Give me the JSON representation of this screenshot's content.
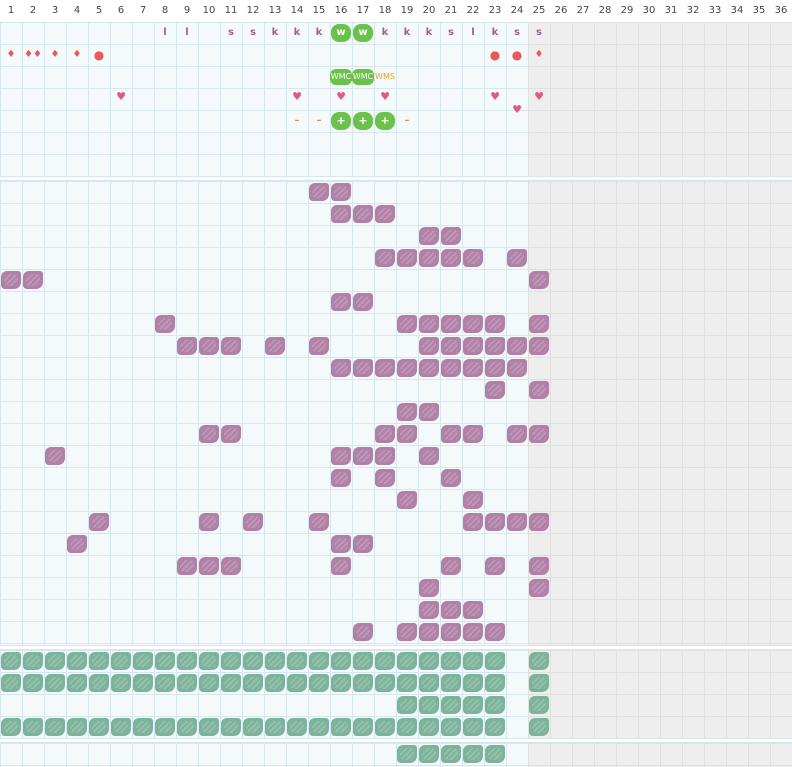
{
  "days": [
    "1",
    "2",
    "3",
    "4",
    "5",
    "6",
    "7",
    "8",
    "9",
    "10",
    "11",
    "12",
    "13",
    "14",
    "15",
    "16",
    "17",
    "18",
    "19",
    "20",
    "21",
    "22",
    "23",
    "24",
    "25",
    "26",
    "27",
    "28",
    "29",
    "30",
    "31",
    "32",
    "33",
    "34",
    "35",
    "36"
  ],
  "symbols": {
    "letters": [
      {
        "day": 8,
        "text": "l"
      },
      {
        "day": 9,
        "text": "l"
      },
      {
        "day": 11,
        "text": "s"
      },
      {
        "day": 12,
        "text": "s"
      },
      {
        "day": 13,
        "text": "k"
      },
      {
        "day": 14,
        "text": "k"
      },
      {
        "day": 15,
        "text": "k"
      },
      {
        "day": 18,
        "text": "k"
      },
      {
        "day": 19,
        "text": "k"
      },
      {
        "day": 20,
        "text": "k"
      },
      {
        "day": 21,
        "text": "s"
      },
      {
        "day": 22,
        "text": "l"
      },
      {
        "day": 23,
        "text": "k"
      },
      {
        "day": 24,
        "text": "s"
      },
      {
        "day": 25,
        "text": "s"
      }
    ],
    "w_badges": [
      {
        "day": 16,
        "text": "w"
      },
      {
        "day": 17,
        "text": "w"
      }
    ],
    "drops": [
      {
        "day": 1,
        "text": "♦",
        "kind": "drop"
      },
      {
        "day": 2,
        "text": "♦♦",
        "kind": "drop"
      },
      {
        "day": 3,
        "text": "♦",
        "kind": "drop"
      },
      {
        "day": 4,
        "text": "♦",
        "kind": "drop"
      },
      {
        "day": 5,
        "text": "●",
        "kind": "dot"
      },
      {
        "day": 23,
        "text": "●",
        "kind": "dot"
      },
      {
        "day": 24,
        "text": "●",
        "kind": "dot"
      },
      {
        "day": 25,
        "text": "♦",
        "kind": "drop"
      }
    ],
    "waves": [
      {
        "day": 16,
        "text": "WMC",
        "style": "green"
      },
      {
        "day": 17,
        "text": "WMC",
        "style": "green"
      },
      {
        "day": 18,
        "text": "WMS",
        "style": "orange"
      }
    ],
    "hearts": [
      {
        "day": 6,
        "text": "♥",
        "row": 3
      },
      {
        "day": 14,
        "text": "♥",
        "row": 3
      },
      {
        "day": 16,
        "text": "♥",
        "row": 3
      },
      {
        "day": 18,
        "text": "♥",
        "row": 3
      },
      {
        "day": 23,
        "text": "♥",
        "row": 3
      },
      {
        "day": 24,
        "text": "♥",
        "row": 3.6
      },
      {
        "day": 25,
        "text": "♥",
        "row": 3
      }
    ],
    "signs": [
      {
        "day": 14,
        "text": "–",
        "kind": "dash"
      },
      {
        "day": 15,
        "text": "–",
        "kind": "dash"
      },
      {
        "day": 16,
        "text": "+",
        "kind": "plus"
      },
      {
        "day": 17,
        "text": "+",
        "kind": "plus"
      },
      {
        "day": 18,
        "text": "+",
        "kind": "plus"
      },
      {
        "day": 19,
        "text": "–",
        "kind": "dash"
      }
    ]
  },
  "symptoms": [
    [
      15,
      16
    ],
    [
      16,
      17,
      18
    ],
    [
      20,
      21
    ],
    [
      18,
      19,
      20,
      21,
      22,
      24
    ],
    [
      1,
      2,
      25
    ],
    [
      16,
      17
    ],
    [
      8,
      19,
      20,
      21,
      22,
      23,
      25
    ],
    [
      9,
      10,
      11,
      13,
      15,
      20,
      21,
      22,
      23,
      24,
      25
    ],
    [
      16,
      17,
      18,
      19,
      20,
      21,
      22,
      23,
      24
    ],
    [
      23,
      25
    ],
    [
      19,
      20
    ],
    [
      10,
      11,
      18,
      19,
      21,
      22,
      24,
      25
    ],
    [
      3,
      16,
      17,
      18,
      20
    ],
    [
      16,
      18,
      21
    ],
    [
      19,
      22
    ],
    [
      5,
      10,
      12,
      15,
      22,
      23,
      24,
      25
    ],
    [
      4,
      16,
      17
    ],
    [
      9,
      10,
      11,
      16,
      21,
      23,
      25
    ],
    [
      20,
      25
    ],
    [
      20,
      21,
      22
    ],
    [
      17,
      19,
      20,
      21,
      22,
      23
    ]
  ],
  "tracking": [
    [
      1,
      2,
      3,
      4,
      5,
      6,
      7,
      8,
      9,
      10,
      11,
      12,
      13,
      14,
      15,
      16,
      17,
      18,
      19,
      20,
      21,
      22,
      23,
      25
    ],
    [
      1,
      2,
      3,
      4,
      5,
      6,
      7,
      8,
      9,
      10,
      11,
      12,
      13,
      14,
      15,
      16,
      17,
      18,
      19,
      20,
      21,
      22,
      23,
      25
    ],
    [
      19,
      20,
      21,
      22,
      23,
      25
    ],
    [
      1,
      2,
      3,
      4,
      5,
      6,
      7,
      8,
      9,
      10,
      11,
      12,
      13,
      14,
      15,
      16,
      17,
      18,
      19,
      20,
      21,
      22,
      23,
      25
    ]
  ],
  "bottom": [
    [
      19,
      20,
      21,
      22,
      23
    ]
  ],
  "colors": {
    "symptom": "#b080a6",
    "tracking": "#7cb39a",
    "badge": "#6bc24a",
    "future": "#eeeeee",
    "grid": "#d6e7ee"
  }
}
